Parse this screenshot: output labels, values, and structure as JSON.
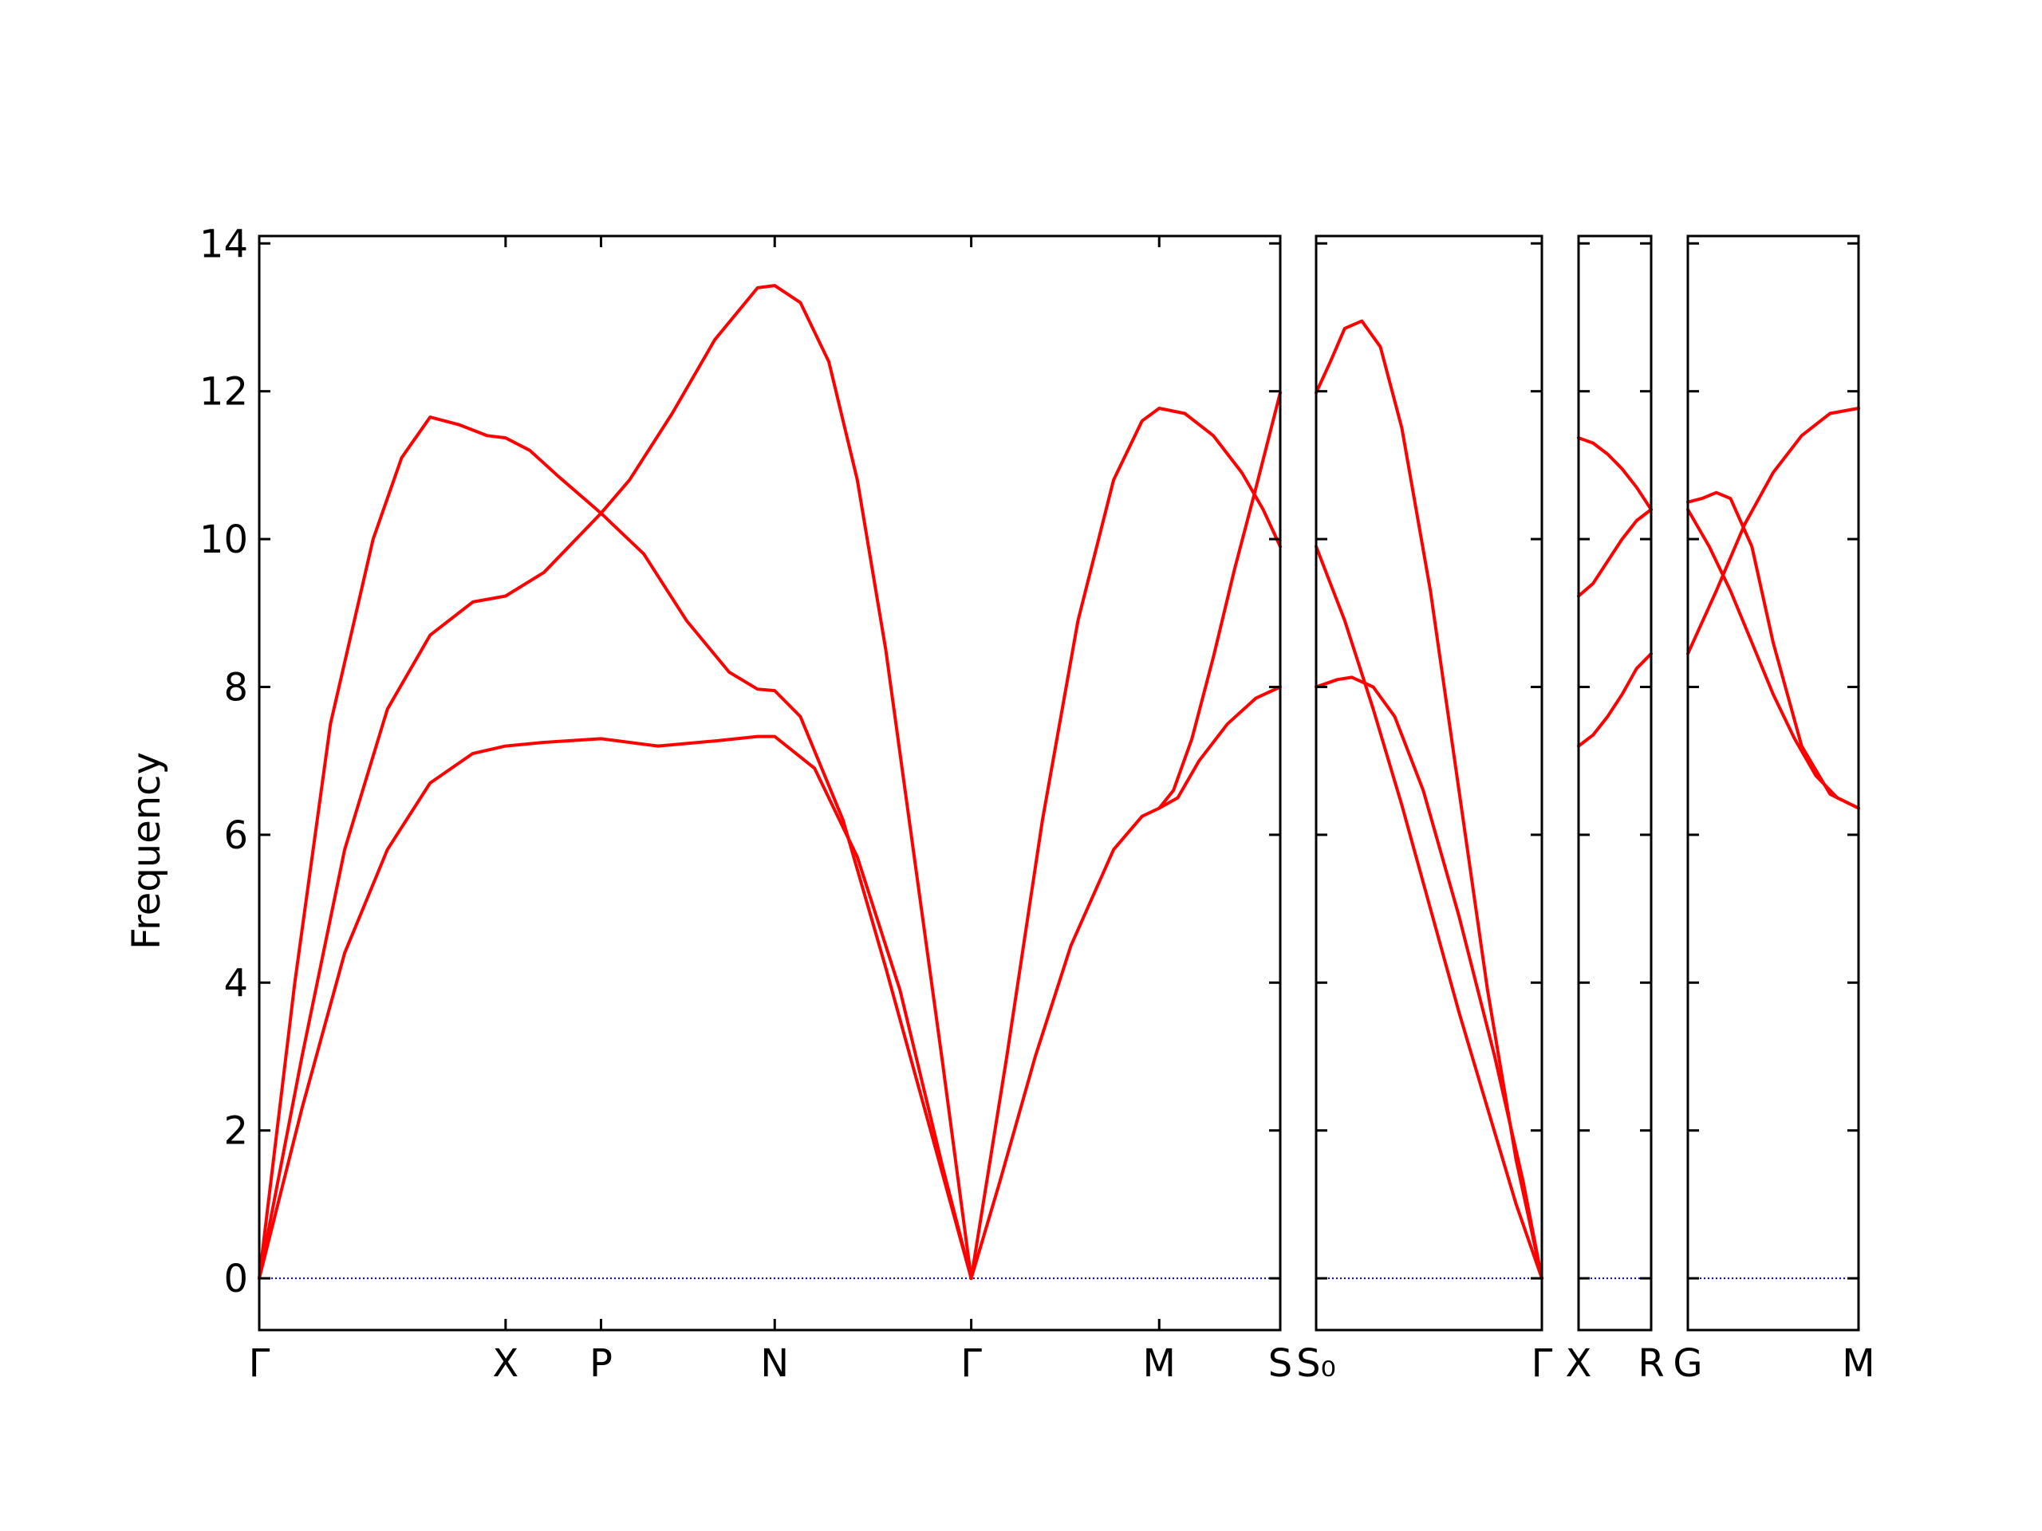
{
  "chart_data": {
    "type": "line",
    "title": "",
    "xlabel": "",
    "ylabel": "Frequency",
    "ylim": [
      -0.7,
      14.1
    ],
    "yticks": [
      0,
      2,
      4,
      6,
      8,
      10,
      12,
      14
    ],
    "grid": false,
    "legend": "none",
    "colors": {
      "bands": "#ff0000",
      "zero_line": "#0000cc",
      "axes": "#000000"
    },
    "panels": [
      {
        "name": "panel-1",
        "x_range": [
          0,
          7.17
        ],
        "ticks": [
          {
            "x": 0,
            "label": "Γ"
          },
          {
            "x": 1.73,
            "label": "X"
          },
          {
            "x": 2.4,
            "label": "P"
          },
          {
            "x": 3.62,
            "label": "N"
          },
          {
            "x": 5.0,
            "label": "Γ"
          },
          {
            "x": 6.32,
            "label": "M"
          },
          {
            "x": 7.17,
            "label": "S"
          }
        ],
        "series": [
          {
            "points": [
              [
                0,
                0
              ],
              [
                0.25,
                4.0
              ],
              [
                0.5,
                7.5
              ],
              [
                0.8,
                10.0
              ],
              [
                1.0,
                11.1
              ],
              [
                1.2,
                11.65
              ],
              [
                1.4,
                11.55
              ],
              [
                1.6,
                11.4
              ],
              [
                1.73,
                11.37
              ],
              [
                1.9,
                11.2
              ],
              [
                2.1,
                10.85
              ],
              [
                2.4,
                10.35
              ],
              [
                2.7,
                9.8
              ],
              [
                3.0,
                8.9
              ],
              [
                3.3,
                8.2
              ],
              [
                3.5,
                7.97
              ],
              [
                3.62,
                7.95
              ],
              [
                3.8,
                7.6
              ],
              [
                4.1,
                6.2
              ],
              [
                4.4,
                4.2
              ],
              [
                4.7,
                2.1
              ],
              [
                5.0,
                0
              ]
            ]
          },
          {
            "points": [
              [
                0,
                0
              ],
              [
                0.3,
                3.0
              ],
              [
                0.6,
                5.8
              ],
              [
                0.9,
                7.7
              ],
              [
                1.2,
                8.7
              ],
              [
                1.5,
                9.15
              ],
              [
                1.73,
                9.23
              ],
              [
                2.0,
                9.55
              ],
              [
                2.4,
                10.35
              ],
              [
                2.6,
                10.8
              ],
              [
                2.9,
                11.7
              ],
              [
                3.2,
                12.7
              ],
              [
                3.5,
                13.4
              ],
              [
                3.62,
                13.43
              ],
              [
                3.8,
                13.2
              ],
              [
                4.0,
                12.4
              ],
              [
                4.2,
                10.8
              ],
              [
                4.4,
                8.5
              ],
              [
                4.6,
                5.7
              ],
              [
                4.8,
                2.9
              ],
              [
                5.0,
                0
              ]
            ]
          },
          {
            "points": [
              [
                0,
                0
              ],
              [
                0.3,
                2.3
              ],
              [
                0.6,
                4.4
              ],
              [
                0.9,
                5.8
              ],
              [
                1.2,
                6.7
              ],
              [
                1.5,
                7.1
              ],
              [
                1.73,
                7.2
              ],
              [
                2.0,
                7.25
              ],
              [
                2.4,
                7.3
              ],
              [
                2.8,
                7.2
              ],
              [
                3.2,
                7.27
              ],
              [
                3.5,
                7.33
              ],
              [
                3.62,
                7.33
              ],
              [
                3.9,
                6.9
              ],
              [
                4.2,
                5.7
              ],
              [
                4.5,
                3.9
              ],
              [
                4.8,
                1.5
              ],
              [
                5.0,
                0
              ]
            ]
          },
          {
            "points": [
              [
                5.0,
                0
              ],
              [
                5.25,
                3.0
              ],
              [
                5.5,
                6.2
              ],
              [
                5.75,
                8.9
              ],
              [
                6.0,
                10.8
              ],
              [
                6.2,
                11.6
              ],
              [
                6.32,
                11.77
              ],
              [
                6.5,
                11.7
              ],
              [
                6.7,
                11.4
              ],
              [
                6.9,
                10.9
              ],
              [
                7.05,
                10.4
              ],
              [
                7.17,
                9.9
              ]
            ]
          },
          {
            "points": [
              [
                5.0,
                0
              ],
              [
                5.2,
                1.3
              ],
              [
                5.45,
                3.0
              ],
              [
                5.7,
                4.5
              ],
              [
                6.0,
                5.8
              ],
              [
                6.2,
                6.25
              ],
              [
                6.32,
                6.36
              ],
              [
                6.45,
                6.5
              ],
              [
                6.6,
                7.0
              ],
              [
                6.8,
                7.5
              ],
              [
                7.0,
                7.85
              ],
              [
                7.17,
                8.0
              ]
            ]
          },
          {
            "points": [
              [
                6.32,
                6.36
              ],
              [
                6.42,
                6.6
              ],
              [
                6.55,
                7.3
              ],
              [
                6.7,
                8.4
              ],
              [
                6.85,
                9.6
              ],
              [
                7.0,
                10.7
              ],
              [
                7.17,
                11.98
              ]
            ]
          }
        ]
      },
      {
        "name": "panel-2",
        "x_range": [
          0,
          1.58
        ],
        "ticks": [
          {
            "x": 0,
            "label": "S₀"
          },
          {
            "x": 1.58,
            "label": "Γ"
          }
        ],
        "series": [
          {
            "points": [
              [
                0,
                11.98
              ],
              [
                0.1,
                12.4
              ],
              [
                0.2,
                12.85
              ],
              [
                0.32,
                12.95
              ],
              [
                0.45,
                12.6
              ],
              [
                0.6,
                11.5
              ],
              [
                0.8,
                9.3
              ],
              [
                1.0,
                6.6
              ],
              [
                1.2,
                3.9
              ],
              [
                1.4,
                1.6
              ],
              [
                1.58,
                0
              ]
            ]
          },
          {
            "points": [
              [
                0,
                9.9
              ],
              [
                0.2,
                8.9
              ],
              [
                0.4,
                7.7
              ],
              [
                0.6,
                6.4
              ],
              [
                0.8,
                5.0
              ],
              [
                1.0,
                3.6
              ],
              [
                1.2,
                2.3
              ],
              [
                1.4,
                1.0
              ],
              [
                1.58,
                0
              ]
            ]
          },
          {
            "points": [
              [
                0,
                8.0
              ],
              [
                0.15,
                8.1
              ],
              [
                0.25,
                8.13
              ],
              [
                0.4,
                8.0
              ],
              [
                0.55,
                7.6
              ],
              [
                0.75,
                6.6
              ],
              [
                1.0,
                4.9
              ],
              [
                1.25,
                3.0
              ],
              [
                1.45,
                1.3
              ],
              [
                1.58,
                0
              ]
            ]
          }
        ]
      },
      {
        "name": "panel-3",
        "x_range": [
          0,
          0.5
        ],
        "ticks": [
          {
            "x": 0,
            "label": "X"
          },
          {
            "x": 0.5,
            "label": "R"
          }
        ],
        "series": [
          {
            "points": [
              [
                0,
                11.37
              ],
              [
                0.1,
                11.3
              ],
              [
                0.2,
                11.15
              ],
              [
                0.3,
                10.95
              ],
              [
                0.4,
                10.7
              ],
              [
                0.5,
                10.4
              ]
            ]
          },
          {
            "points": [
              [
                0,
                9.23
              ],
              [
                0.1,
                9.4
              ],
              [
                0.2,
                9.7
              ],
              [
                0.3,
                10.0
              ],
              [
                0.4,
                10.25
              ],
              [
                0.5,
                10.4
              ]
            ]
          },
          {
            "points": [
              [
                0,
                7.2
              ],
              [
                0.1,
                7.35
              ],
              [
                0.2,
                7.6
              ],
              [
                0.3,
                7.9
              ],
              [
                0.4,
                8.25
              ],
              [
                0.5,
                8.45
              ]
            ]
          }
        ]
      },
      {
        "name": "panel-4",
        "x_range": [
          0,
          1.2
        ],
        "ticks": [
          {
            "x": 0,
            "label": "G"
          },
          {
            "x": 1.2,
            "label": "M"
          }
        ],
        "series": [
          {
            "points": [
              [
                0,
                10.5
              ],
              [
                0.1,
                10.55
              ],
              [
                0.2,
                10.63
              ],
              [
                0.3,
                10.55
              ],
              [
                0.45,
                9.9
              ],
              [
                0.6,
                8.6
              ],
              [
                0.8,
                7.2
              ],
              [
                1.0,
                6.55
              ],
              [
                1.2,
                6.36
              ]
            ]
          },
          {
            "points": [
              [
                0,
                10.4
              ],
              [
                0.15,
                9.9
              ],
              [
                0.3,
                9.3
              ],
              [
                0.45,
                8.6
              ],
              [
                0.6,
                7.9
              ],
              [
                0.75,
                7.3
              ],
              [
                0.9,
                6.8
              ],
              [
                1.05,
                6.5
              ],
              [
                1.2,
                6.36
              ]
            ]
          },
          {
            "points": [
              [
                0,
                8.45
              ],
              [
                0.2,
                9.3
              ],
              [
                0.4,
                10.2
              ],
              [
                0.6,
                10.9
              ],
              [
                0.8,
                11.4
              ],
              [
                1.0,
                11.7
              ],
              [
                1.2,
                11.77
              ]
            ]
          }
        ]
      }
    ]
  }
}
